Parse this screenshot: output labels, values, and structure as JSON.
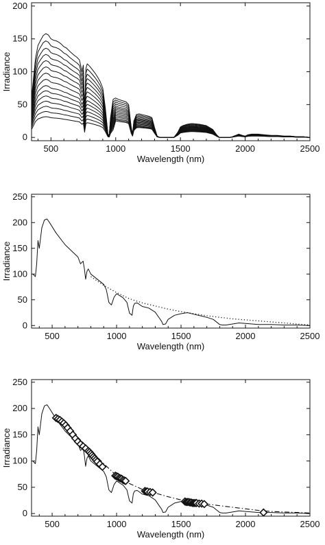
{
  "chart_data": [
    {
      "type": "line",
      "title": "",
      "xlabel": "Wavelength (nm)",
      "ylabel": "Irradiance",
      "xlim": [
        350,
        2500
      ],
      "ylim": [
        -5,
        205
      ],
      "xticks": [
        500,
        1000,
        1500,
        2000,
        2500
      ],
      "yticks": [
        0,
        50,
        100,
        150,
        200
      ],
      "grid": false,
      "legend": "none",
      "scales": [
        1.0,
        0.93,
        0.86,
        0.8,
        0.74,
        0.68,
        0.62,
        0.56,
        0.5,
        0.45,
        0.4,
        0.35,
        0.3,
        0.25,
        0.2
      ],
      "band_scales": [
        1.0,
        0.95,
        0.9,
        0.85,
        0.8,
        0.76,
        0.72,
        0.68,
        0.64,
        0.6,
        0.56,
        0.52,
        0.48,
        0.45,
        0.42
      ],
      "series": [
        {
          "x": [
            350,
            380,
            400,
            420,
            440,
            460,
            480,
            500,
            520,
            540,
            560,
            580,
            600,
            620,
            650,
            680,
            700,
            720,
            740,
            750,
            760,
            770,
            780,
            800,
            820,
            840,
            860,
            880,
            900,
            920,
            940,
            950,
            960,
            980,
            1000,
            1020,
            1050,
            1080,
            1100,
            1120,
            1130,
            1140,
            1160,
            1180,
            1200,
            1220,
            1240,
            1260,
            1280,
            1300,
            1320,
            1340,
            1360,
            1380,
            1400,
            1420,
            1450,
            1480,
            1500,
            1520,
            1550,
            1580,
            1600,
            1650,
            1700,
            1750,
            1780,
            1800,
            1820,
            1850,
            1880,
            1900,
            1950,
            1980,
            2000,
            2020,
            2050,
            2100,
            2150,
            2200,
            2250,
            2300,
            2350,
            2400,
            2450,
            2500
          ],
          "y": [
            60,
            120,
            140,
            148,
            155,
            158,
            156,
            150,
            148,
            147,
            145,
            142,
            138,
            136,
            130,
            125,
            122,
            118,
            100,
            110,
            40,
            105,
            112,
            108,
            103,
            98,
            92,
            85,
            75,
            45,
            5,
            3,
            30,
            58,
            60,
            58,
            56,
            54,
            50,
            15,
            5,
            25,
            35,
            36,
            35,
            34,
            33,
            32,
            30,
            15,
            2,
            0,
            0,
            0,
            0,
            0,
            0,
            8,
            16,
            18,
            20,
            21,
            21,
            20,
            18,
            12,
            4,
            0,
            0,
            0,
            0,
            1,
            5,
            3,
            2,
            4,
            5,
            5,
            4,
            3,
            3,
            2,
            2,
            1,
            1,
            0
          ]
        }
      ]
    },
    {
      "type": "line",
      "title": "",
      "xlabel": "Wavelength (nm)",
      "ylabel": "Irradiance",
      "xlim": [
        340,
        2500
      ],
      "ylim": [
        -5,
        255
      ],
      "xticks": [
        500,
        1000,
        1500,
        2000,
        2500
      ],
      "yticks": [
        0,
        50,
        100,
        150,
        200,
        250
      ],
      "grid": false,
      "legend": "none",
      "series": [
        {
          "style": "solid",
          "x": [
            350,
            370,
            380,
            390,
            400,
            420,
            440,
            460,
            480,
            500,
            530,
            560,
            600,
            650,
            700,
            720,
            740,
            750,
            760,
            770,
            780,
            800,
            850,
            900,
            920,
            940,
            960,
            980,
            1000,
            1050,
            1080,
            1100,
            1120,
            1130,
            1140,
            1160,
            1200,
            1250,
            1300,
            1330,
            1350,
            1360,
            1380,
            1400,
            1450,
            1500,
            1550,
            1600,
            1650,
            1700,
            1750,
            1780,
            1800,
            1820,
            1850,
            1900,
            1950,
            2000,
            2050,
            2100,
            2200,
            2300,
            2400,
            2500
          ],
          "y": [
            100,
            95,
            120,
            165,
            150,
            190,
            205,
            207,
            200,
            192,
            180,
            170,
            157,
            145,
            133,
            120,
            125,
            110,
            90,
            105,
            110,
            100,
            90,
            80,
            70,
            45,
            40,
            55,
            62,
            54,
            45,
            24,
            20,
            38,
            43,
            44,
            37,
            34,
            26,
            15,
            8,
            2,
            3,
            12,
            20,
            23,
            25,
            22,
            19,
            16,
            12,
            6,
            2,
            1,
            1,
            3,
            5,
            4,
            3,
            2,
            2,
            1,
            1,
            0
          ]
        },
        {
          "style": "dotted",
          "x": [
            800,
            900,
            1000,
            1100,
            1200,
            1300,
            1400,
            1500,
            1600,
            1700,
            1800,
            1900,
            2000,
            2100,
            2200,
            2300,
            2400,
            2500
          ],
          "y": [
            95,
            78,
            64,
            52,
            44,
            38,
            32,
            27,
            23,
            19,
            16,
            13,
            11,
            9,
            7,
            5,
            3,
            1
          ]
        }
      ]
    },
    {
      "type": "line",
      "title": "",
      "xlabel": "Wavelength (nm)",
      "ylabel": "Irradiance",
      "xlim": [
        340,
        2500
      ],
      "ylim": [
        -5,
        255
      ],
      "xticks": [
        500,
        1000,
        1500,
        2000,
        2500
      ],
      "yticks": [
        0,
        50,
        100,
        150,
        200,
        250
      ],
      "grid": false,
      "legend": "none",
      "series": [
        {
          "style": "solid",
          "x": [
            350,
            370,
            380,
            390,
            400,
            420,
            440,
            460,
            480,
            500,
            530,
            560,
            600,
            650,
            700,
            720,
            740,
            750,
            760,
            770,
            780,
            800,
            850,
            900,
            920,
            940,
            960,
            980,
            1000,
            1050,
            1080,
            1100,
            1120,
            1130,
            1140,
            1160,
            1200,
            1250,
            1300,
            1330,
            1350,
            1360,
            1380,
            1400,
            1450,
            1500,
            1550,
            1600,
            1650,
            1700,
            1750,
            1780,
            1800,
            1820,
            1850,
            1900,
            1950,
            2000,
            2050,
            2100,
            2200,
            2300,
            2400,
            2500
          ],
          "y": [
            100,
            95,
            120,
            165,
            150,
            190,
            205,
            207,
            200,
            192,
            180,
            170,
            157,
            145,
            133,
            120,
            125,
            110,
            90,
            105,
            110,
            100,
            90,
            80,
            70,
            45,
            40,
            55,
            62,
            54,
            45,
            24,
            20,
            38,
            43,
            44,
            37,
            34,
            26,
            15,
            8,
            2,
            3,
            12,
            20,
            23,
            25,
            22,
            19,
            16,
            12,
            6,
            2,
            1,
            1,
            3,
            5,
            4,
            3,
            2,
            2,
            1,
            1,
            0
          ]
        },
        {
          "style": "dashdot",
          "x": [
            520,
            600,
            700,
            800,
            900,
            1000,
            1100,
            1200,
            1300,
            1400,
            1500,
            1600,
            1700,
            1800,
            1900,
            2000,
            2100,
            2200,
            2300,
            2400,
            2500
          ],
          "y": [
            182,
            170,
            145,
            120,
            95,
            72,
            57,
            46,
            39,
            32,
            26,
            22,
            18,
            15,
            12,
            9,
            6,
            4,
            3,
            2,
            1
          ]
        },
        {
          "style": "markers",
          "x": [
            530,
            545,
            560,
            575,
            590,
            605,
            620,
            640,
            660,
            680,
            700,
            720,
            740,
            760,
            780,
            790,
            800,
            810,
            820,
            830,
            840,
            850,
            870,
            890,
            990,
            1000,
            1010,
            1020,
            1030,
            1040,
            1050,
            1060,
            1070,
            1220,
            1230,
            1240,
            1260,
            1280,
            1530,
            1540,
            1550,
            1560,
            1570,
            1580,
            1590,
            1600,
            1610,
            1620,
            1640,
            1660,
            1680,
            2140
          ],
          "y": [
            182,
            180,
            178,
            175,
            172,
            168,
            163,
            157,
            150,
            143,
            137,
            132,
            128,
            124,
            119,
            117,
            114,
            111,
            108,
            105,
            102,
            99,
            94,
            89,
            72,
            71,
            70,
            68,
            67,
            66,
            64,
            63,
            62,
            43,
            42,
            42,
            41,
            40,
            23,
            22,
            22,
            22,
            21,
            21,
            20,
            20,
            20,
            20,
            19,
            19,
            18,
            2
          ]
        }
      ]
    }
  ]
}
